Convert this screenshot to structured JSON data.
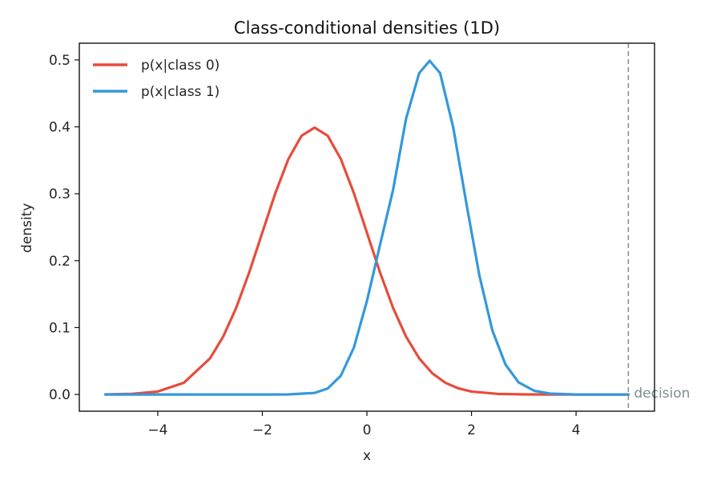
{
  "chart_data": {
    "type": "line",
    "title": "Class-conditional densities (1D)",
    "xlabel": "x",
    "ylabel": "density",
    "xlim": [
      -5.5,
      5.5
    ],
    "ylim": [
      -0.025,
      0.525
    ],
    "xticks": [
      -4,
      -2,
      0,
      2,
      4
    ],
    "yticks": [
      0.0,
      0.1,
      0.2,
      0.3,
      0.4,
      0.5
    ],
    "xtick_labels": [
      "−4",
      "−2",
      "0",
      "2",
      "4"
    ],
    "ytick_labels": [
      "0.0",
      "0.1",
      "0.2",
      "0.3",
      "0.4",
      "0.5"
    ],
    "grid": false,
    "legend_position": "top-left",
    "series": [
      {
        "name": "p(x|class 0)",
        "color": "#e74c3c",
        "x": [
          -5.0,
          -4.5,
          -4.0,
          -3.5,
          -3.0,
          -2.75,
          -2.5,
          -2.25,
          -2.0,
          -1.75,
          -1.5,
          -1.25,
          -1.0,
          -0.75,
          -0.5,
          -0.25,
          0.0,
          0.25,
          0.5,
          0.75,
          1.0,
          1.25,
          1.5,
          1.75,
          2.0,
          2.5,
          3.0,
          3.5,
          4.0,
          4.5,
          5.0
        ],
        "y": [
          0.0001,
          0.0009,
          0.0044,
          0.0175,
          0.054,
          0.0863,
          0.1295,
          0.1826,
          0.242,
          0.3011,
          0.3521,
          0.3867,
          0.3989,
          0.3867,
          0.3521,
          0.3011,
          0.242,
          0.1826,
          0.1295,
          0.0863,
          0.054,
          0.0317,
          0.0175,
          0.0091,
          0.0044,
          0.0009,
          0.0001,
          0.0,
          0.0,
          0.0,
          0.0
        ]
      },
      {
        "name": "p(x|class 1)",
        "color": "#3498db",
        "x": [
          -5.0,
          -4.0,
          -3.0,
          -2.0,
          -1.5,
          -1.0,
          -0.75,
          -0.5,
          -0.25,
          0.0,
          0.25,
          0.5,
          0.75,
          1.0,
          1.2,
          1.4,
          1.65,
          1.9,
          2.15,
          2.4,
          2.65,
          2.9,
          3.2,
          3.5,
          4.0,
          4.5,
          5.0
        ],
        "y": [
          0.0,
          0.0,
          0.0,
          0.0,
          0.0001,
          0.0023,
          0.0089,
          0.0279,
          0.0699,
          0.1396,
          0.2233,
          0.3057,
          0.4126,
          0.4803,
          0.4987,
          0.4803,
          0.3993,
          0.2865,
          0.1781,
          0.0955,
          0.0448,
          0.0181,
          0.0055,
          0.0014,
          0.0,
          0.0,
          0.0
        ]
      }
    ],
    "annotations": [
      {
        "type": "vline",
        "x": 5.0,
        "style": "dashed",
        "color": "#7f8c8d",
        "label": "decision"
      }
    ]
  }
}
